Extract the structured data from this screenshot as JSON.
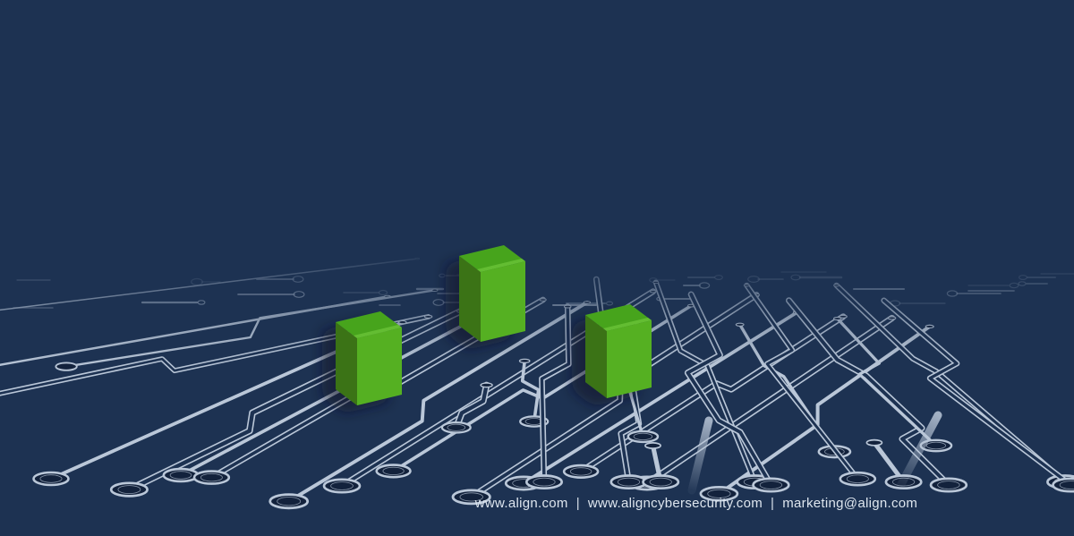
{
  "footer": {
    "links": [
      "www.align.com",
      "www.aligncybersecurity.com",
      "marketing@align.com"
    ],
    "separator": "|"
  },
  "colors": {
    "background": "#1d3252",
    "trace": "#bac7d8",
    "pad_center": "#13223c",
    "bar_front": "#55b022",
    "bar_side": "#3a7317",
    "bar_top": "#47a41e",
    "bar_top_highlight": "#68c236",
    "shadow": "#081527",
    "footer_text": "#dee6ef"
  }
}
